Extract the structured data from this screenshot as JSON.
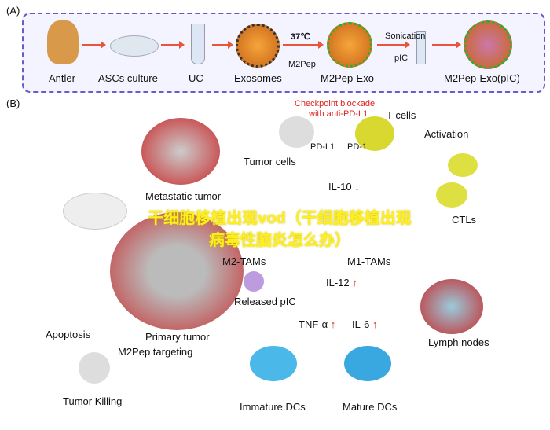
{
  "panel_a": {
    "tag": "(A)",
    "steps": [
      "Antler",
      "ASCs culture",
      "UC",
      "Exosomes",
      "M2Pep-Exo",
      "M2Pep-Exo(pIC)"
    ],
    "temp": "37℃",
    "m2pep": "M2Pep",
    "sonication": "Sonication",
    "pic": "pIC"
  },
  "panel_b": {
    "tag": "(B)",
    "checkpoint": "Checkpoint blockade",
    "checkpoint2": "with anti-PD-L1",
    "t_cells": "T cells",
    "pd_l1": "PD-L1",
    "pd_1": "PD-1",
    "tumor_cells": "Tumor cells",
    "activation": "Activation",
    "metastatic_tumor": "Metastatic tumor",
    "il10": "IL-10",
    "m2_tams": "M2-TAMs",
    "m1_tams": "M1-TAMs",
    "ctls": "CTLs",
    "released_pic": "Released pIC",
    "il12": "IL-12",
    "tnf": "TNF-α",
    "il6": "IL-6",
    "primary_tumor": "Primary tumor",
    "m2pep_targeting": "M2Pep targeting",
    "apoptosis": "Apoptosis",
    "tumor_killing": "Tumor Killing",
    "immature_dcs": "Immature DCs",
    "mature_dcs": "Mature DCs",
    "lymph_nodes": "Lymph nodes",
    "down_arrow": "↓",
    "up_arrow": "↑"
  },
  "overlay_text": "干细胞移植出现vod（干细胞移植出现病毒性脑炎怎么办）"
}
